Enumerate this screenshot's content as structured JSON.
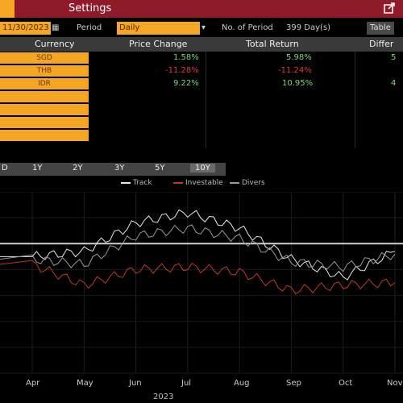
{
  "titlebar": {
    "title": "Settings"
  },
  "params": {
    "date": "11/30/2023",
    "period_label": "Period",
    "period_value": "Daily",
    "nperiods_label": "No. of Period",
    "nperiods_value": "399 Day(s)",
    "table_btn": "Table"
  },
  "table": {
    "headers": [
      "Currency",
      "Price Change",
      "Total Return",
      "Differ"
    ],
    "rows": [
      {
        "name": "SGD",
        "price": "1.58%",
        "total": "5.98%",
        "diff": "5"
      },
      {
        "name": "THB",
        "price": "-11.28%",
        "total": "-11.24%",
        "diff": ""
      },
      {
        "name": "IDR",
        "price": "9.22%",
        "total": "10.95%",
        "diff": "4"
      },
      {
        "name": "",
        "price": "",
        "total": "",
        "diff": ""
      },
      {
        "name": "",
        "price": "",
        "total": "",
        "diff": ""
      },
      {
        "name": "",
        "price": "",
        "total": "",
        "diff": ""
      },
      {
        "name": "",
        "price": "",
        "total": "",
        "diff": ""
      }
    ]
  },
  "tabs": [
    "D",
    "1Y",
    "2Y",
    "3Y",
    "5Y",
    "10Y"
  ],
  "selected_tab": "10Y",
  "legend": [
    {
      "label": "Track",
      "color": "#e8e8e8"
    },
    {
      "label": "Investable",
      "color": "#c0392b"
    },
    {
      "label": "Divers",
      "color": "#9a9a9a"
    }
  ],
  "chart_data": {
    "type": "line",
    "x": [
      "Apr",
      "May",
      "Jun",
      "Jul",
      "Aug",
      "Sep",
      "Oct",
      "Nov"
    ],
    "xlabel": "2023",
    "series": [
      {
        "name": "Track",
        "values": [
          -2.5,
          -1.5,
          4.0,
          6.0,
          3.0,
          -3.0,
          -6.5,
          -1.5
        ]
      },
      {
        "name": "Investable",
        "values": [
          -4.0,
          -8.0,
          -5.0,
          -4.5,
          -5.5,
          -9.0,
          -8.0,
          -7.5
        ]
      },
      {
        "name": "Divers",
        "values": [
          -3.0,
          -4.0,
          1.5,
          3.0,
          1.0,
          -3.5,
          -4.5,
          -2.0
        ]
      }
    ],
    "baseline": 0,
    "ylim": [
      -25,
      10
    ],
    "grid": true
  }
}
